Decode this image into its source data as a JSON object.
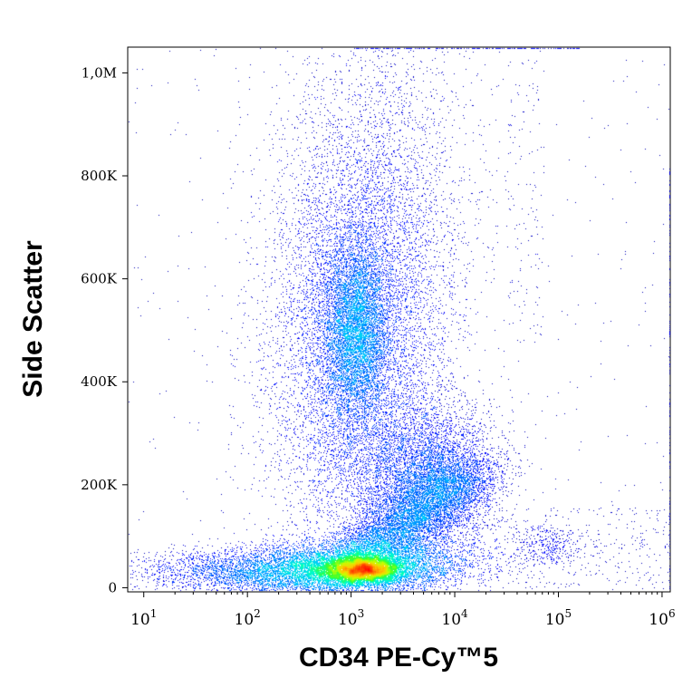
{
  "chart_data": {
    "type": "scatter",
    "subtype": "flow-cytometry density dot plot",
    "xlabel": "CD34 PE-Cy™5",
    "ylabel": "Side Scatter",
    "x_scale": "log",
    "xlim": [
      7,
      1200000
    ],
    "ylim": [
      -8000,
      1050000
    ],
    "x_ticks": [
      {
        "value": 10,
        "base": "10",
        "exp": "1"
      },
      {
        "value": 100,
        "base": "10",
        "exp": "2"
      },
      {
        "value": 1000,
        "base": "10",
        "exp": "3"
      },
      {
        "value": 10000,
        "base": "10",
        "exp": "4"
      },
      {
        "value": 100000,
        "base": "10",
        "exp": "5"
      },
      {
        "value": 1000000,
        "base": "10",
        "exp": "6"
      }
    ],
    "y_ticks": [
      {
        "value": 0,
        "label": "0"
      },
      {
        "value": 200000,
        "label": "200K"
      },
      {
        "value": 400000,
        "label": "400K"
      },
      {
        "value": 600000,
        "label": "600K"
      },
      {
        "value": 800000,
        "label": "800K"
      },
      {
        "value": 1000000,
        "label": "1,0M"
      }
    ],
    "grid": false,
    "legend": "none",
    "colormap": [
      "#00008b",
      "#0000ff",
      "#0064ff",
      "#00c8ff",
      "#00ffc8",
      "#32ff32",
      "#c8ff00",
      "#ffc800",
      "#ff6400",
      "#ff0000"
    ],
    "populations": [
      {
        "center_x": 1200,
        "center_y": 40000,
        "density": "highest (red core)"
      },
      {
        "center_x": 1400,
        "center_y": 480000,
        "density": "high (cyan core)"
      },
      {
        "center_x": 5000,
        "center_y": 220000,
        "density": "medium"
      },
      {
        "center_x": 60000,
        "center_y": 70000,
        "density": "sparse"
      }
    ]
  }
}
